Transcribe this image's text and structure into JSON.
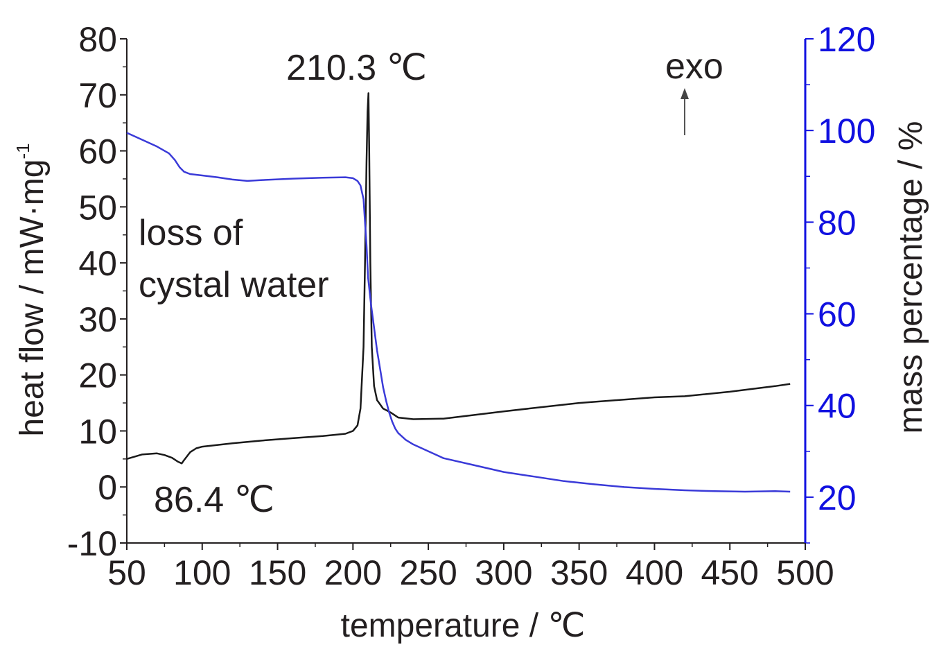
{
  "chart_data": {
    "type": "line",
    "title": "",
    "xlabel": "temperature / ℃",
    "ylabel": "heat flow / mW·mg",
    "ylabel_superscript": "-1",
    "y2label": "mass percentage / %",
    "xlim": [
      50,
      500
    ],
    "ylim": [
      -10,
      80
    ],
    "y2lim": [
      10,
      120
    ],
    "x_ticks": [
      "50",
      "100",
      "150",
      "200",
      "250",
      "300",
      "350",
      "400",
      "450",
      "500"
    ],
    "y_ticks": [
      "-10",
      "0",
      "10",
      "20",
      "30",
      "40",
      "50",
      "60",
      "70",
      "80"
    ],
    "y2_ticks": [
      "20",
      "40",
      "60",
      "80",
      "100",
      "120"
    ],
    "grid": false,
    "legend": "none",
    "colors": {
      "heat_flow": "#1a1a1a",
      "mass": "#3a3ad8",
      "right_axis": "#1010e0"
    },
    "series": [
      {
        "axis": "left",
        "x": [
          50,
          60,
          70,
          75,
          80,
          84,
          86.4,
          88,
          92,
          96,
          100,
          120,
          140,
          160,
          180,
          195,
          200,
          203,
          205,
          207,
          208,
          209,
          209.7,
          210.3,
          210.8,
          211.5,
          212.5,
          214,
          216,
          220,
          225,
          230,
          240,
          260,
          300,
          350,
          400,
          420,
          450,
          480,
          490
        ],
        "y": [
          5,
          5.8,
          6,
          5.7,
          5.2,
          4.5,
          4.2,
          4.8,
          6.2,
          6.9,
          7.2,
          7.8,
          8.3,
          8.7,
          9.1,
          9.5,
          10,
          11,
          14,
          25,
          40,
          58,
          67,
          70.3,
          60,
          40,
          25,
          18,
          15.5,
          14,
          13.3,
          12.4,
          12.1,
          12.2,
          13.5,
          15,
          16,
          16.2,
          17,
          18,
          18.4
        ]
      },
      {
        "axis": "right",
        "x": [
          50,
          60,
          70,
          78,
          82,
          85,
          88,
          92,
          100,
          110,
          120,
          130,
          140,
          160,
          180,
          195,
          200,
          203,
          205,
          207,
          208,
          209,
          210,
          212,
          214,
          216,
          218,
          220,
          222,
          224,
          226,
          228,
          230,
          235,
          240,
          250,
          260,
          280,
          300,
          320,
          340,
          360,
          380,
          400,
          420,
          440,
          460,
          480,
          490
        ],
        "y": [
          99.5,
          98,
          96.5,
          95,
          93.5,
          92,
          91,
          90.5,
          90.2,
          89.8,
          89.3,
          89,
          89.2,
          89.5,
          89.7,
          89.8,
          89.6,
          89,
          88,
          85,
          80,
          75,
          68,
          62,
          57,
          52,
          48,
          44,
          41,
          38.5,
          36.5,
          35,
          34,
          32.5,
          31.5,
          30,
          28.5,
          27,
          25.5,
          24.5,
          23.5,
          22.8,
          22.2,
          21.8,
          21.5,
          21.3,
          21.2,
          21.3,
          21.2
        ]
      }
    ],
    "annotations": {
      "peak_label": "210.3 ℃",
      "dip_label": "86.4 ℃",
      "loss_line1": "loss of",
      "loss_line2": "cystal water",
      "exo_label": "exo"
    }
  }
}
